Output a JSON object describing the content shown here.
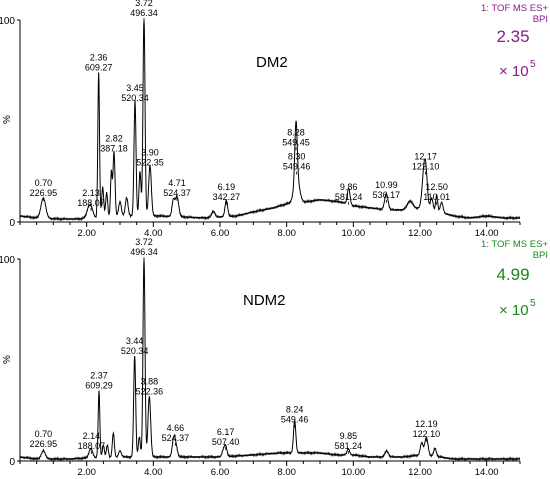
{
  "chart_data": [
    {
      "type": "line",
      "sample": "DM2",
      "header_line1": "1: TOF MS ES+",
      "header_line2": "BPI",
      "intensity_value": "2.35",
      "intensity_unit": "× 10",
      "intensity_exp": "5",
      "accent": "#8b1a8b",
      "ylabel": "%",
      "xlim": [
        0,
        15
      ],
      "ylim": [
        0,
        100
      ],
      "y_ticks": [
        "0",
        "100"
      ],
      "x_ticks": [
        "2.00",
        "4.00",
        "6.00",
        "8.00",
        "10.00",
        "12.00",
        "14.00"
      ],
      "baseline": [
        [
          0,
          3
        ],
        [
          0.5,
          2
        ],
        [
          1.2,
          1.5
        ],
        [
          1.8,
          1.5
        ],
        [
          2.0,
          2.5
        ],
        [
          2.3,
          2
        ],
        [
          3.0,
          3
        ],
        [
          4.2,
          3
        ],
        [
          4.9,
          2.5
        ],
        [
          5.5,
          2
        ],
        [
          6.5,
          3
        ],
        [
          7.0,
          5
        ],
        [
          7.6,
          7
        ],
        [
          8.0,
          9
        ],
        [
          8.6,
          10
        ],
        [
          9.0,
          11
        ],
        [
          9.6,
          10
        ],
        [
          10.0,
          8
        ],
        [
          10.5,
          7
        ],
        [
          11.0,
          6
        ],
        [
          11.5,
          6
        ],
        [
          12.0,
          7
        ],
        [
          12.6,
          5
        ],
        [
          13.0,
          3
        ],
        [
          13.5,
          2
        ],
        [
          14.0,
          3
        ],
        [
          14.5,
          2
        ],
        [
          15,
          2
        ]
      ],
      "peaks": [
        [
          0.7,
          10,
          0.07
        ],
        [
          2.05,
          3,
          0.05
        ],
        [
          2.13,
          5,
          0.06
        ],
        [
          2.36,
          72,
          0.025
        ],
        [
          2.48,
          15,
          0.03
        ],
        [
          2.6,
          12,
          0.03
        ],
        [
          2.74,
          22,
          0.025
        ],
        [
          2.82,
          32,
          0.03
        ],
        [
          3.0,
          7,
          0.04
        ],
        [
          3.2,
          9,
          0.04
        ],
        [
          3.45,
          57,
          0.03
        ],
        [
          3.6,
          22,
          0.03
        ],
        [
          3.72,
          99,
          0.03
        ],
        [
          3.9,
          25,
          0.04
        ],
        [
          4.6,
          8,
          0.04
        ],
        [
          4.71,
          10,
          0.05
        ],
        [
          5.8,
          3,
          0.05
        ],
        [
          6.19,
          8,
          0.04
        ],
        [
          8.28,
          28,
          0.035
        ],
        [
          8.3,
          13,
          0.08
        ],
        [
          9.86,
          8,
          0.04
        ],
        [
          10.99,
          8,
          0.05
        ],
        [
          11.7,
          4,
          0.08
        ],
        [
          12.1,
          12,
          0.05
        ],
        [
          12.17,
          19,
          0.05
        ],
        [
          12.35,
          6,
          0.04
        ],
        [
          12.5,
          8,
          0.03
        ],
        [
          12.65,
          5,
          0.04
        ]
      ],
      "annotations": [
        {
          "x": 0.7,
          "y": 10,
          "rt": "0.70",
          "mz": "226.95"
        },
        {
          "x": 2.13,
          "y": 5,
          "rt": "2.13",
          "mz": "188.07"
        },
        {
          "x": 2.36,
          "y": 72,
          "rt": "2.36",
          "mz": "609.27"
        },
        {
          "x": 2.82,
          "y": 32,
          "rt": "2.82",
          "mz": "387.18"
        },
        {
          "x": 3.45,
          "y": 57,
          "rt": "3.45",
          "mz": "520.34"
        },
        {
          "x": 3.72,
          "y": 99,
          "rt": "3.72",
          "mz": "496.34"
        },
        {
          "x": 3.9,
          "y": 25,
          "rt": "3.90",
          "mz": "522.35"
        },
        {
          "x": 4.71,
          "y": 10,
          "rt": "4.71",
          "mz": "524.37"
        },
        {
          "x": 6.19,
          "y": 8,
          "rt": "6.19",
          "mz": "342.27"
        },
        {
          "x": 8.28,
          "y": 35,
          "rt": "8.28",
          "mz": "549.45"
        },
        {
          "x": 8.3,
          "y": 23,
          "rt": "8.30",
          "mz": "549.46"
        },
        {
          "x": 9.86,
          "y": 8,
          "rt": "9.86",
          "mz": "581.24"
        },
        {
          "x": 10.99,
          "y": 9,
          "rt": "10.99",
          "mz": "536.17"
        },
        {
          "x": 12.17,
          "y": 23,
          "rt": "12.17",
          "mz": "122.10"
        },
        {
          "x": 12.5,
          "y": 8,
          "rt": "12.50",
          "mz": "110.01"
        }
      ]
    },
    {
      "type": "line",
      "sample": "NDM2",
      "header_line1": "1: TOF MS ES+",
      "header_line2": "BPI",
      "intensity_value": "4.99",
      "intensity_unit": "× 10",
      "intensity_exp": "5",
      "accent": "#1a8a1a",
      "ylabel": "%",
      "xlim": [
        0,
        15
      ],
      "ylim": [
        0,
        100
      ],
      "y_ticks": [
        "0",
        "100"
      ],
      "x_ticks": [
        "2.00",
        "4.00",
        "6.00",
        "8.00",
        "10.00",
        "12.00",
        "14.00"
      ],
      "baseline": [
        [
          0,
          2
        ],
        [
          0.5,
          1
        ],
        [
          1.5,
          1
        ],
        [
          2.0,
          1.5
        ],
        [
          3.0,
          2
        ],
        [
          4.3,
          2
        ],
        [
          5.0,
          2
        ],
        [
          6.0,
          2
        ],
        [
          7.0,
          3
        ],
        [
          7.8,
          4
        ],
        [
          8.5,
          4
        ],
        [
          9.0,
          4
        ],
        [
          9.5,
          3
        ],
        [
          10.0,
          3
        ],
        [
          10.5,
          2
        ],
        [
          11.0,
          2
        ],
        [
          11.5,
          2
        ],
        [
          12.0,
          3
        ],
        [
          12.6,
          2
        ],
        [
          13.0,
          1
        ],
        [
          14.0,
          1
        ],
        [
          15,
          1
        ]
      ],
      "peaks": [
        [
          0.7,
          4,
          0.06
        ],
        [
          2.1,
          2,
          0.05
        ],
        [
          2.14,
          3,
          0.05
        ],
        [
          2.37,
          33,
          0.025
        ],
        [
          2.5,
          6,
          0.03
        ],
        [
          2.62,
          6,
          0.03
        ],
        [
          2.8,
          12,
          0.03
        ],
        [
          3.0,
          3,
          0.04
        ],
        [
          3.44,
          50,
          0.03
        ],
        [
          3.58,
          10,
          0.03
        ],
        [
          3.72,
          99,
          0.03
        ],
        [
          3.88,
          30,
          0.04
        ],
        [
          4.6,
          6,
          0.04
        ],
        [
          4.66,
          7,
          0.05
        ],
        [
          6.1,
          3,
          0.04
        ],
        [
          6.17,
          5,
          0.04
        ],
        [
          8.24,
          16,
          0.035
        ],
        [
          9.85,
          3,
          0.04
        ],
        [
          11.0,
          3,
          0.05
        ],
        [
          12.05,
          6,
          0.04
        ],
        [
          12.19,
          9,
          0.05
        ],
        [
          12.45,
          4,
          0.04
        ]
      ],
      "annotations": [
        {
          "x": 0.7,
          "y": 4,
          "rt": "0.70",
          "mz": "226.95"
        },
        {
          "x": 2.14,
          "y": 3,
          "rt": "2.14",
          "mz": "188.07"
        },
        {
          "x": 2.37,
          "y": 33,
          "rt": "2.37",
          "mz": "609.29"
        },
        {
          "x": 3.44,
          "y": 50,
          "rt": "3.44",
          "mz": "520.34"
        },
        {
          "x": 3.72,
          "y": 99,
          "rt": "3.72",
          "mz": "496.34"
        },
        {
          "x": 3.88,
          "y": 30,
          "rt": "3.88",
          "mz": "522.36"
        },
        {
          "x": 4.66,
          "y": 7,
          "rt": "4.66",
          "mz": "524.37"
        },
        {
          "x": 6.17,
          "y": 5,
          "rt": "6.17",
          "mz": "507.40"
        },
        {
          "x": 8.24,
          "y": 16,
          "rt": "8.24",
          "mz": "549.46"
        },
        {
          "x": 9.85,
          "y": 3,
          "rt": "9.85",
          "mz": "581.24"
        },
        {
          "x": 12.19,
          "y": 9,
          "rt": "12.19",
          "mz": "122.10"
        }
      ]
    }
  ]
}
